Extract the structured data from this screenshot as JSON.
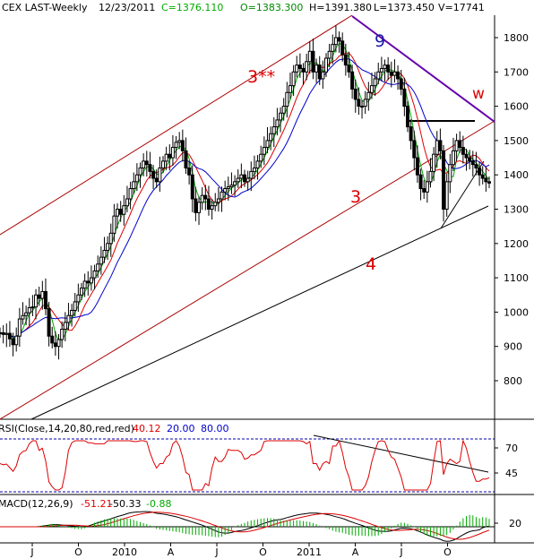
{
  "header": {
    "symbol": "CEX LAST-Weekly",
    "date": "12/23/2011",
    "close": "C=1376.110",
    "open": "O=1383.300",
    "high": "H=1391.380",
    "low": "L=1373.450",
    "volume": "V=17741"
  },
  "colors": {
    "background": "#ffffff",
    "candle": "#000000",
    "ma_fast": "#00aa00",
    "ma_mid": "#dd0000",
    "ma_slow": "#0000cc",
    "channel": "#aa0000",
    "annotation_red": "#dd0000",
    "annotation_blue": "#1a1aaa",
    "resistance": "#6600aa",
    "grid": "#0000aa"
  },
  "annotations": {
    "wave_3_star": "3**",
    "wave_9": "9",
    "wave_w": "w",
    "wave_3": "3",
    "wave_4": "4"
  },
  "rsi": {
    "label": "RSI(Close,14,20,80,red,red)",
    "value": "40.12",
    "low": "20.00",
    "high": "80.00"
  },
  "macd": {
    "label": "MACD(12,26,9)",
    "v1": "-51.21",
    "v2": "-50.33",
    "v3": "-0.88"
  },
  "chart_data": {
    "type": "candlestick",
    "price_axis": {
      "ticks": [
        800,
        900,
        1000,
        1100,
        1200,
        1300,
        1400,
        1500,
        1600,
        1700,
        1800
      ],
      "ylim": [
        700,
        1870
      ]
    },
    "rsi_axis": {
      "ticks": [
        45,
        70
      ]
    },
    "macd_axis": {
      "ticks": [
        20
      ]
    },
    "time_axis": {
      "tick_labels": [
        "J",
        "O",
        "2010",
        "A",
        "J",
        "O",
        "2011",
        "A",
        "J",
        "O"
      ]
    },
    "weeks": 151,
    "close_series": [
      940,
      935,
      938,
      922,
      905,
      930,
      980,
      990,
      998,
      1013,
      1015,
      1050,
      1040,
      1060,
      1010,
      930,
      910,
      900,
      920,
      950,
      970,
      990,
      1005,
      1030,
      1050,
      1070,
      1090,
      1085,
      1100,
      1120,
      1140,
      1160,
      1180,
      1200,
      1230,
      1280,
      1300,
      1285,
      1310,
      1330,
      1360,
      1380,
      1400,
      1420,
      1440,
      1430,
      1410,
      1390,
      1380,
      1420,
      1440,
      1460,
      1450,
      1480,
      1495,
      1500,
      1470,
      1420,
      1400,
      1330,
      1290,
      1320,
      1340,
      1330,
      1300,
      1310,
      1320,
      1330,
      1350,
      1360,
      1365,
      1370,
      1380,
      1390,
      1400,
      1380,
      1390,
      1410,
      1420,
      1440,
      1460,
      1480,
      1500,
      1520,
      1540,
      1560,
      1580,
      1600,
      1640,
      1660,
      1700,
      1720,
      1710,
      1700,
      1730,
      1760,
      1700,
      1720,
      1680,
      1700,
      1740,
      1760,
      1780,
      1800,
      1790,
      1750,
      1720,
      1700,
      1650,
      1620,
      1600,
      1600,
      1620,
      1640,
      1660,
      1680,
      1700,
      1710,
      1720,
      1700,
      1690,
      1700,
      1680,
      1650,
      1600,
      1540,
      1500,
      1450,
      1400,
      1360,
      1350,
      1380,
      1410,
      1460,
      1500,
      1470,
      1300,
      1380,
      1430,
      1470,
      1500,
      1480,
      1460,
      1450,
      1440,
      1430,
      1420,
      1400,
      1390,
      1380,
      1376
    ]
  }
}
